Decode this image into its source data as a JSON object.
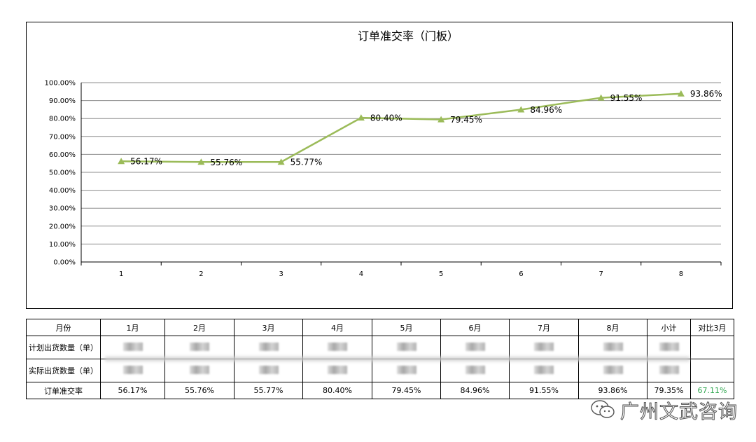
{
  "chart_data": {
    "type": "line",
    "title": "订单准交率（门板）",
    "categories": [
      "1",
      "2",
      "3",
      "4",
      "5",
      "6",
      "7",
      "8"
    ],
    "values": [
      56.17,
      55.76,
      55.77,
      80.4,
      79.45,
      84.96,
      91.55,
      93.86
    ],
    "data_labels": [
      "56.17%",
      "55.76%",
      "55.77%",
      "80.40%",
      "79.45%",
      "84.96%",
      "91.55%",
      "93.86%"
    ],
    "y_tick_labels": [
      "0.00%",
      "10.00%",
      "20.00%",
      "30.00%",
      "40.00%",
      "50.00%",
      "60.00%",
      "70.00%",
      "80.00%",
      "90.00%",
      "100.00%"
    ],
    "ylim": [
      0,
      100
    ],
    "grid": true,
    "marker": "triangle",
    "colors": {
      "line": "#9bbb59",
      "grid": "#8c8c8c"
    }
  },
  "table": {
    "headers": [
      "月份",
      "1月",
      "2月",
      "3月",
      "4月",
      "5月",
      "6月",
      "7月",
      "8月",
      "小计",
      "对比3月"
    ],
    "rows": [
      {
        "label": "计划出货数量（单）",
        "cells": []
      },
      {
        "label": "实际出货数量（单）",
        "cells": []
      },
      {
        "label": "订单准交率",
        "cells": [
          "56.17%",
          "55.76%",
          "55.77%",
          "80.40%",
          "79.45%",
          "84.96%",
          "91.55%",
          "93.86%",
          "79.35%",
          "67.11%"
        ]
      }
    ],
    "highlight_color": "#33a852"
  },
  "watermark": {
    "text": "广州文武咨询",
    "icon": "wechat-icon"
  }
}
